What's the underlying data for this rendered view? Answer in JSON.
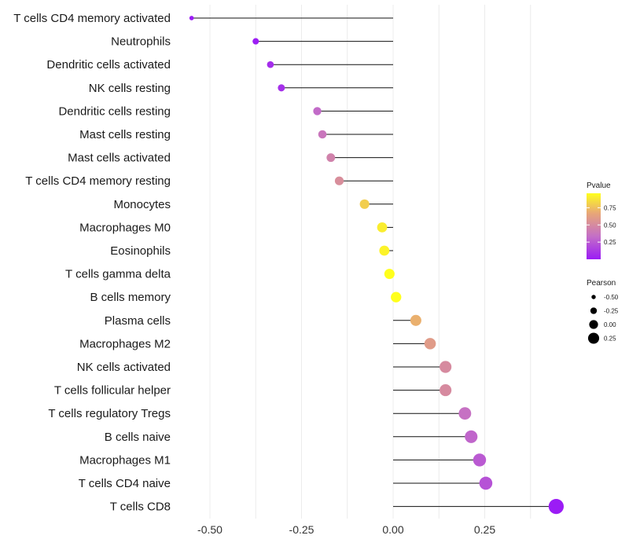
{
  "chart_data": {
    "type": "lollipop",
    "title": "",
    "xlabel": "",
    "ylabel": "",
    "xlim": [
      -0.6,
      0.45
    ],
    "x_ticks": [
      -0.5,
      -0.25,
      0.0,
      0.25
    ],
    "x_tick_labels": [
      "-0.50",
      "-0.25",
      "0.00",
      "0.25"
    ],
    "grid": true,
    "categories": [
      "T cells CD4 memory activated",
      "Neutrophils",
      "Dendritic cells activated",
      "NK cells resting",
      "Dendritic cells resting",
      "Mast cells resting",
      "Mast cells activated",
      "T cells CD4 memory resting",
      "Monocytes",
      "Macrophages M0",
      "Eosinophils",
      "T cells gamma delta",
      "B cells memory",
      "Plasma cells",
      "Macrophages M2",
      "NK cells activated",
      "T cells follicular helper",
      "T cells regulatory  Tregs ",
      "B cells naive",
      "Macrophages M1",
      "T cells CD4 naive",
      "T cells CD8"
    ],
    "pearson": [
      -0.55,
      -0.375,
      -0.335,
      -0.305,
      -0.207,
      -0.193,
      -0.17,
      -0.147,
      -0.078,
      -0.03,
      -0.024,
      -0.01,
      0.008,
      0.062,
      0.101,
      0.143,
      0.143,
      0.196,
      0.213,
      0.236,
      0.253,
      0.445
    ],
    "pvalue": [
      0.0,
      0.01,
      0.07,
      0.08,
      0.32,
      0.38,
      0.45,
      0.52,
      0.8,
      0.9,
      0.92,
      0.96,
      0.96,
      0.7,
      0.6,
      0.5,
      0.5,
      0.35,
      0.3,
      0.25,
      0.22,
      0.0
    ],
    "legend_pvalue": {
      "title": "Pvalue",
      "ticks": [
        0.75,
        0.5,
        0.25
      ],
      "tick_labels": [
        "0.75",
        "0.50",
        "0.25"
      ],
      "range": [
        0.0,
        0.96
      ],
      "colors": [
        "#9b1cf5",
        "#c46fc6",
        "#e8a777",
        "#ffff1c"
      ],
      "placement": "right"
    },
    "legend_pearson": {
      "title": "Pearson",
      "values": [
        -0.5,
        -0.25,
        0.0,
        0.25
      ],
      "labels": [
        "-0.50",
        "-0.25",
        "0.00",
        "0.25"
      ],
      "placement": "right"
    }
  }
}
